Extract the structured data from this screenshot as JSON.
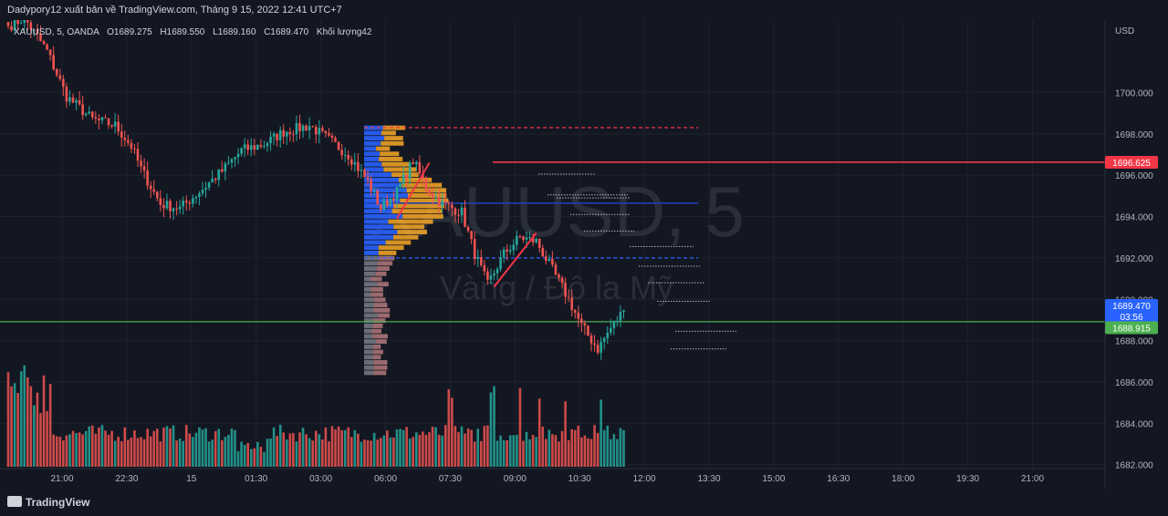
{
  "header": {
    "publisher_line": "Dadypory12 xuất bản về TradingView.com, Tháng 9 15, 2022 12:41 UTC+7"
  },
  "legend": {
    "symbol_info": "XAUUSD, 5, OANDA",
    "open": "O1689.275",
    "high": "H1689.550",
    "low": "L1689.160",
    "close": "C1689.470",
    "volume": "Khối lượng42"
  },
  "watermark": {
    "symbol": "XAUUSD, 5",
    "description": "Vàng / Đô la Mỹ"
  },
  "footer": {
    "brand": "TradingView"
  },
  "colors": {
    "background": "#131722",
    "up": "#26a69a",
    "down": "#ef5350",
    "text": "#b2b5be",
    "red_level": "#f23645",
    "green_level": "#4caf50",
    "price_tag": "#2962ff",
    "poc_line": "#1e40af"
  },
  "chart_data": {
    "type": "candlestick",
    "symbol": "XAUUSD",
    "currency": "USD",
    "y_axis_ticks": [
      "1700.000",
      "1698.000",
      "1696.000",
      "1694.000",
      "1692.000",
      "1690.000",
      "1688.000",
      "1686.000",
      "1684.000",
      "1682.000"
    ],
    "ylim": [
      1681.9,
      1703.5
    ],
    "x_axis_ticks": [
      "21:00",
      "22:30",
      "15",
      "01:30",
      "03:00",
      "06:00",
      "07:30",
      "09:00",
      "10:30",
      "12:00",
      "13:30",
      "15:00",
      "16:30",
      "18:00",
      "19:30",
      "21:00"
    ],
    "close_path": [
      [
        0,
        1703.2
      ],
      [
        5,
        1703.6
      ],
      [
        12,
        1702.0
      ],
      [
        18,
        1699.8
      ],
      [
        26,
        1698.7
      ],
      [
        33,
        1698.4
      ],
      [
        38,
        1697.4
      ],
      [
        41,
        1696.3
      ],
      [
        47,
        1694.6
      ],
      [
        53,
        1694.4
      ],
      [
        59,
        1695.2
      ],
      [
        66,
        1696.2
      ],
      [
        72,
        1697.2
      ],
      [
        79,
        1697.5
      ],
      [
        85,
        1698.1
      ],
      [
        93,
        1698.4
      ],
      [
        99,
        1697.7
      ],
      [
        105,
        1697.0
      ],
      [
        111,
        1695.7
      ],
      [
        115,
        1694.4
      ],
      [
        120,
        1695.2
      ],
      [
        125,
        1696.7
      ],
      [
        129,
        1695.4
      ],
      [
        134,
        1694.6
      ],
      [
        140,
        1694.2
      ],
      [
        144,
        1692.2
      ],
      [
        148,
        1690.7
      ],
      [
        153,
        1692.2
      ],
      [
        158,
        1693.0
      ],
      [
        163,
        1692.8
      ],
      [
        168,
        1691.4
      ],
      [
        173,
        1690.0
      ],
      [
        177,
        1688.7
      ],
      [
        182,
        1687.6
      ],
      [
        186,
        1688.6
      ],
      [
        190,
        1689.47
      ]
    ],
    "volume_profile_range": [
      1686.3,
      1698.4
    ],
    "levels": [
      {
        "label": "1696.625",
        "price": 1696.625,
        "style": "solid",
        "color": "red"
      },
      {
        "label": "1688.915",
        "price": 1688.915,
        "style": "solid",
        "color": "green"
      },
      {
        "label": "",
        "price": 1694.65,
        "style": "solid",
        "color": "blue"
      },
      {
        "label": "",
        "price": 1698.3,
        "style": "dashed",
        "color": "red"
      },
      {
        "label": "",
        "price": 1692.0,
        "style": "dashed",
        "color": "blue"
      }
    ],
    "current_price": {
      "value": "1689.470",
      "countdown": "03:56"
    }
  }
}
